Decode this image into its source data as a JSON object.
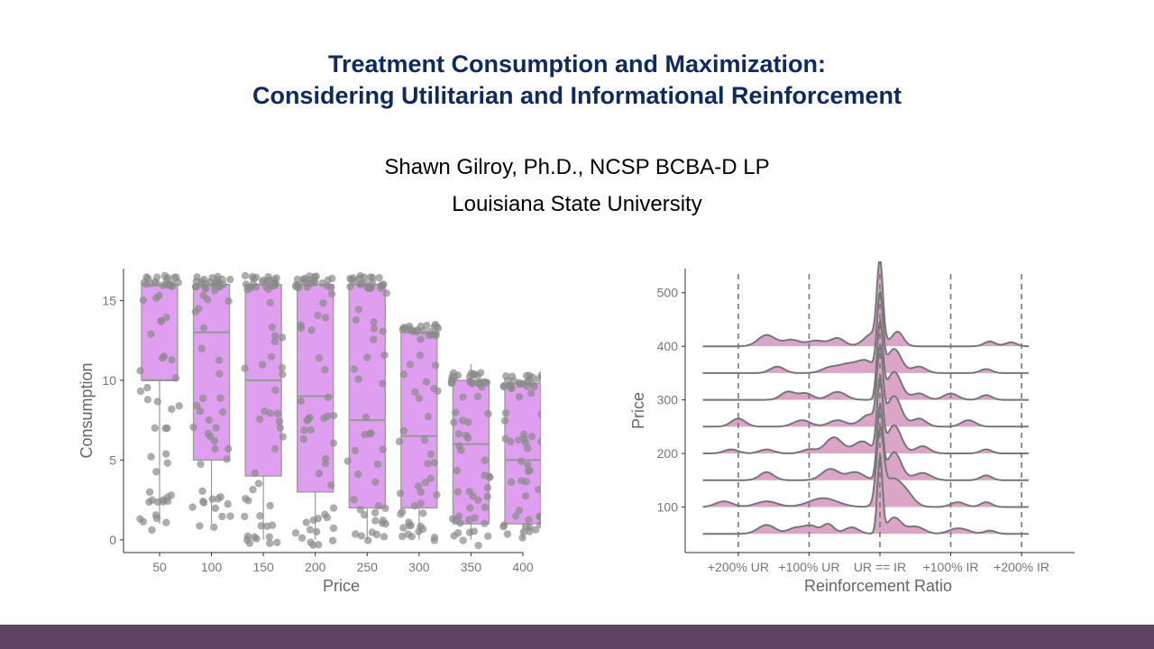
{
  "slide": {
    "title_line1": "Treatment Consumption and Maximization:",
    "title_line2": "Considering Utilitarian and Informational Reinforcement",
    "author": "Shawn Gilroy, Ph.D., NCSP BCBA-D LP",
    "affiliation": "Louisiana State University",
    "colors": {
      "title": "#0f2a63",
      "footer": "#5e4462",
      "box_fill": "#e09ef0",
      "ridge_fill": "#dba5c8",
      "points": "#8a8a8a"
    }
  },
  "chart_data": [
    {
      "type": "box",
      "xlabel": "Price",
      "ylabel": "Consumption",
      "categories": [
        "50",
        "100",
        "150",
        "200",
        "250",
        "300",
        "350",
        "400"
      ],
      "y_ticks": [
        0,
        5,
        10,
        15
      ],
      "ylim": [
        -0.8,
        17
      ],
      "boxes": [
        {
          "q1": 10,
          "median": 10,
          "q3": 16,
          "whisker_low": 1,
          "whisker_high": 16
        },
        {
          "q1": 5,
          "median": 13,
          "q3": 16,
          "whisker_low": 1,
          "whisker_high": 16
        },
        {
          "q1": 4,
          "median": 10,
          "q3": 16,
          "whisker_low": 0,
          "whisker_high": 16
        },
        {
          "q1": 3,
          "median": 9,
          "q3": 16,
          "whisker_low": 0,
          "whisker_high": 16
        },
        {
          "q1": 2,
          "median": 7.5,
          "q3": 16,
          "whisker_low": 0,
          "whisker_high": 16
        },
        {
          "q1": 2,
          "median": 6.5,
          "q3": 13,
          "whisker_low": 0,
          "whisker_high": 13
        },
        {
          "q1": 1,
          "median": 6,
          "q3": 10,
          "whisker_low": 0,
          "whisker_high": 11
        },
        {
          "q1": 1,
          "median": 5,
          "q3": 9.8,
          "whisker_low": 0,
          "whisker_high": 10
        }
      ],
      "grid": false,
      "legend": "none"
    },
    {
      "type": "ridgeline",
      "xlabel": "Reinforcement Ratio",
      "ylabel": "Price",
      "x_ticks": [
        "+200% UR",
        "+100% UR",
        "UR == IR",
        "+100% IR",
        "+200% IR"
      ],
      "x_tick_values": [
        -2,
        -1,
        0,
        1,
        2
      ],
      "xlim": [
        -2.75,
        2.75
      ],
      "y_ticks": [
        100,
        200,
        300,
        400,
        500
      ],
      "ylim": [
        15,
        545
      ],
      "reference_lines": [
        -2,
        -1,
        0,
        1,
        2
      ],
      "ridge_height": 150,
      "ridges": [
        {
          "baseline": 50,
          "x_range": [
            -2.5,
            2.1
          ],
          "peaks": [
            [
              -1.6,
              0.11,
              0.12
            ],
            [
              -1.2,
              0.07,
              0.1
            ],
            [
              -0.98,
              0.1,
              0.1
            ],
            [
              -0.73,
              0.12,
              0.08
            ],
            [
              -0.4,
              0.08,
              0.1
            ],
            [
              0,
              0.95,
              0.035
            ],
            [
              0.2,
              0.2,
              0.1
            ],
            [
              0.5,
              0.09,
              0.12
            ],
            [
              1.05,
              0.05,
              0.1
            ],
            [
              1.2,
              0.04,
              0.1
            ],
            [
              1.55,
              0.04,
              0.08
            ]
          ]
        },
        {
          "baseline": 100,
          "x_range": [
            -2.5,
            2.1
          ],
          "peaks": [
            [
              -2.2,
              0.07,
              0.12
            ],
            [
              -1.6,
              0.07,
              0.15
            ],
            [
              -0.8,
              0.11,
              0.2
            ],
            [
              0,
              0.85,
              0.05
            ],
            [
              0.15,
              0.3,
              0.12
            ],
            [
              0.35,
              0.18,
              0.12
            ],
            [
              1.1,
              0.06,
              0.1
            ],
            [
              1.5,
              0.06,
              0.08
            ]
          ]
        },
        {
          "baseline": 150,
          "x_range": [
            -2.5,
            2.1
          ],
          "peaks": [
            [
              -1.6,
              0.1,
              0.1
            ],
            [
              -0.7,
              0.14,
              0.12
            ],
            [
              -0.35,
              0.1,
              0.12
            ],
            [
              0,
              0.9,
              0.04
            ],
            [
              0.2,
              0.35,
              0.1
            ],
            [
              0.6,
              0.09,
              0.12
            ],
            [
              1.5,
              0.06,
              0.08
            ]
          ]
        },
        {
          "baseline": 200,
          "x_range": [
            -2.5,
            2.1
          ],
          "peaks": [
            [
              -2.1,
              0.05,
              0.1
            ],
            [
              -1.6,
              0.05,
              0.1
            ],
            [
              -1.0,
              0.05,
              0.1
            ],
            [
              -0.65,
              0.2,
              0.12
            ],
            [
              -0.25,
              0.15,
              0.12
            ],
            [
              0,
              0.9,
              0.04
            ],
            [
              0.2,
              0.35,
              0.1
            ],
            [
              0.6,
              0.09,
              0.1
            ],
            [
              1.5,
              0.05,
              0.08
            ]
          ]
        },
        {
          "baseline": 250,
          "x_range": [
            -2.5,
            2.1
          ],
          "peaks": [
            [
              -2.0,
              0.1,
              0.1
            ],
            [
              -1.1,
              0.08,
              0.12
            ],
            [
              -0.6,
              0.08,
              0.12
            ],
            [
              -0.15,
              0.15,
              0.12
            ],
            [
              0,
              0.9,
              0.04
            ],
            [
              0.2,
              0.38,
              0.1
            ],
            [
              0.55,
              0.1,
              0.1
            ],
            [
              1.25,
              0.08,
              0.1
            ]
          ]
        },
        {
          "baseline": 300,
          "x_range": [
            -2.5,
            2.1
          ],
          "peaks": [
            [
              -1.3,
              0.1,
              0.1
            ],
            [
              -1.05,
              0.08,
              0.1
            ],
            [
              -0.6,
              0.1,
              0.12
            ],
            [
              0,
              0.95,
              0.04
            ],
            [
              0.2,
              0.35,
              0.1
            ],
            [
              0.55,
              0.08,
              0.1
            ],
            [
              1.0,
              0.08,
              0.1
            ],
            [
              1.5,
              0.06,
              0.08
            ]
          ]
        },
        {
          "baseline": 350,
          "x_range": [
            -2.5,
            2.1
          ],
          "peaks": [
            [
              -1.45,
              0.08,
              0.1
            ],
            [
              -0.7,
              0.07,
              0.12
            ],
            [
              -0.45,
              0.1,
              0.12
            ],
            [
              -0.2,
              0.15,
              0.12
            ],
            [
              0,
              0.95,
              0.04
            ],
            [
              0.2,
              0.3,
              0.1
            ],
            [
              0.55,
              0.08,
              0.1
            ],
            [
              1.5,
              0.05,
              0.08
            ]
          ]
        },
        {
          "baseline": 400,
          "x_range": [
            -2.5,
            2.1
          ],
          "peaks": [
            [
              -1.6,
              0.14,
              0.12
            ],
            [
              -1.25,
              0.08,
              0.12
            ],
            [
              -0.9,
              0.07,
              0.12
            ],
            [
              -0.6,
              0.1,
              0.1
            ],
            [
              -0.1,
              0.16,
              0.12
            ],
            [
              0,
              1.0,
              0.04
            ],
            [
              0.25,
              0.18,
              0.08
            ],
            [
              1.55,
              0.06,
              0.08
            ],
            [
              1.85,
              0.05,
              0.08
            ]
          ]
        }
      ],
      "grid": false,
      "legend": "none"
    }
  ]
}
